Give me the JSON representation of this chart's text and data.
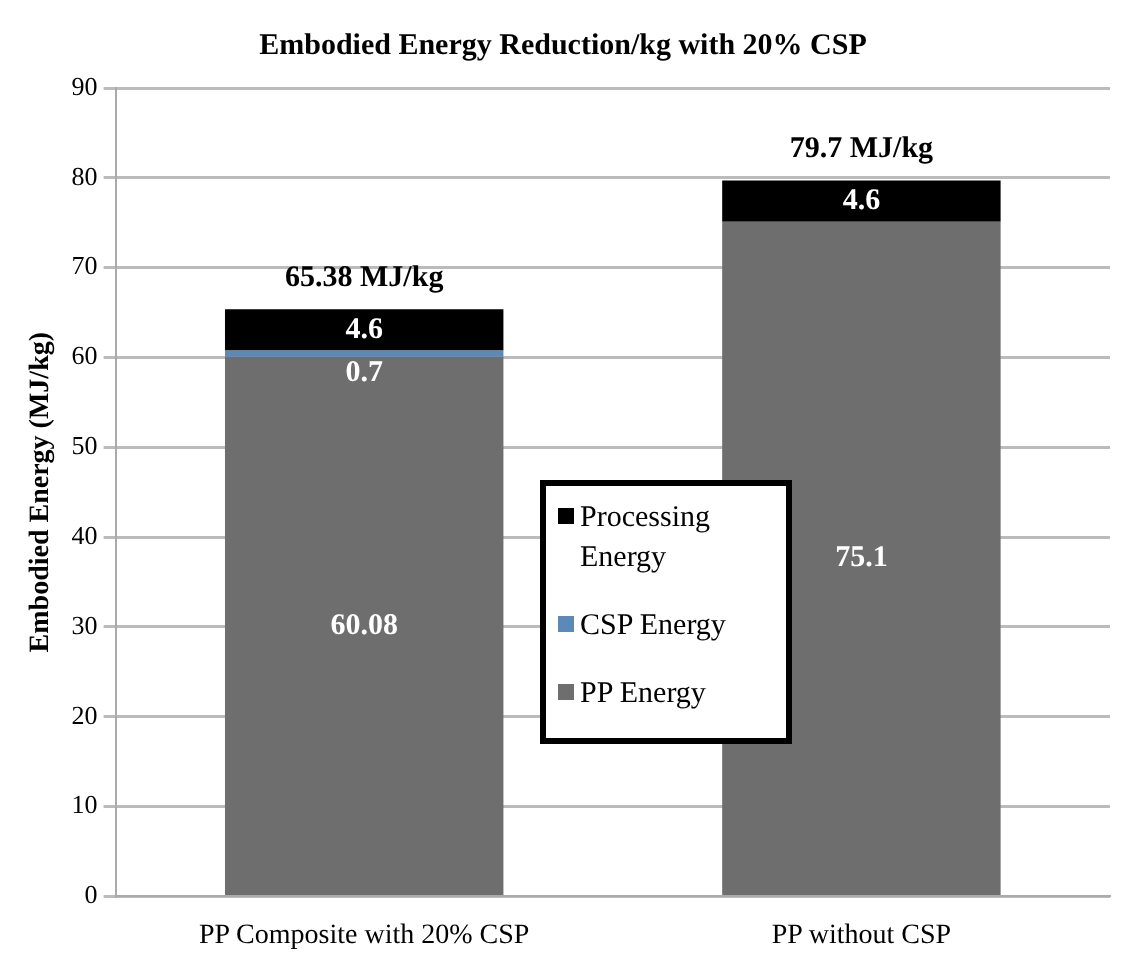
{
  "chart_data": {
    "type": "bar",
    "title": "Embodied Energy Reduction/kg with 20% CSP",
    "ylabel": "Embodied Energy (MJ/kg)",
    "categories": [
      "PP Composite with 20% CSP",
      "PP without CSP"
    ],
    "series": [
      {
        "name": "PP Energy",
        "color": "#6e6e6e",
        "values": [
          60.08,
          75.1
        ]
      },
      {
        "name": "CSP Energy",
        "color": "#5b8ab8",
        "values": [
          0.7,
          null
        ]
      },
      {
        "name": "Processing Energy",
        "color": "#000000",
        "values": [
          4.6,
          4.6
        ]
      }
    ],
    "stacked": true,
    "data_labels": true,
    "totals": [
      "65.38 MJ/kg",
      "79.7 MJ/kg"
    ],
    "ylim": [
      0,
      90
    ],
    "yticks": [
      0,
      10,
      20,
      30,
      40,
      50,
      60,
      70,
      80,
      90
    ],
    "grid": "y",
    "legend": "center"
  }
}
